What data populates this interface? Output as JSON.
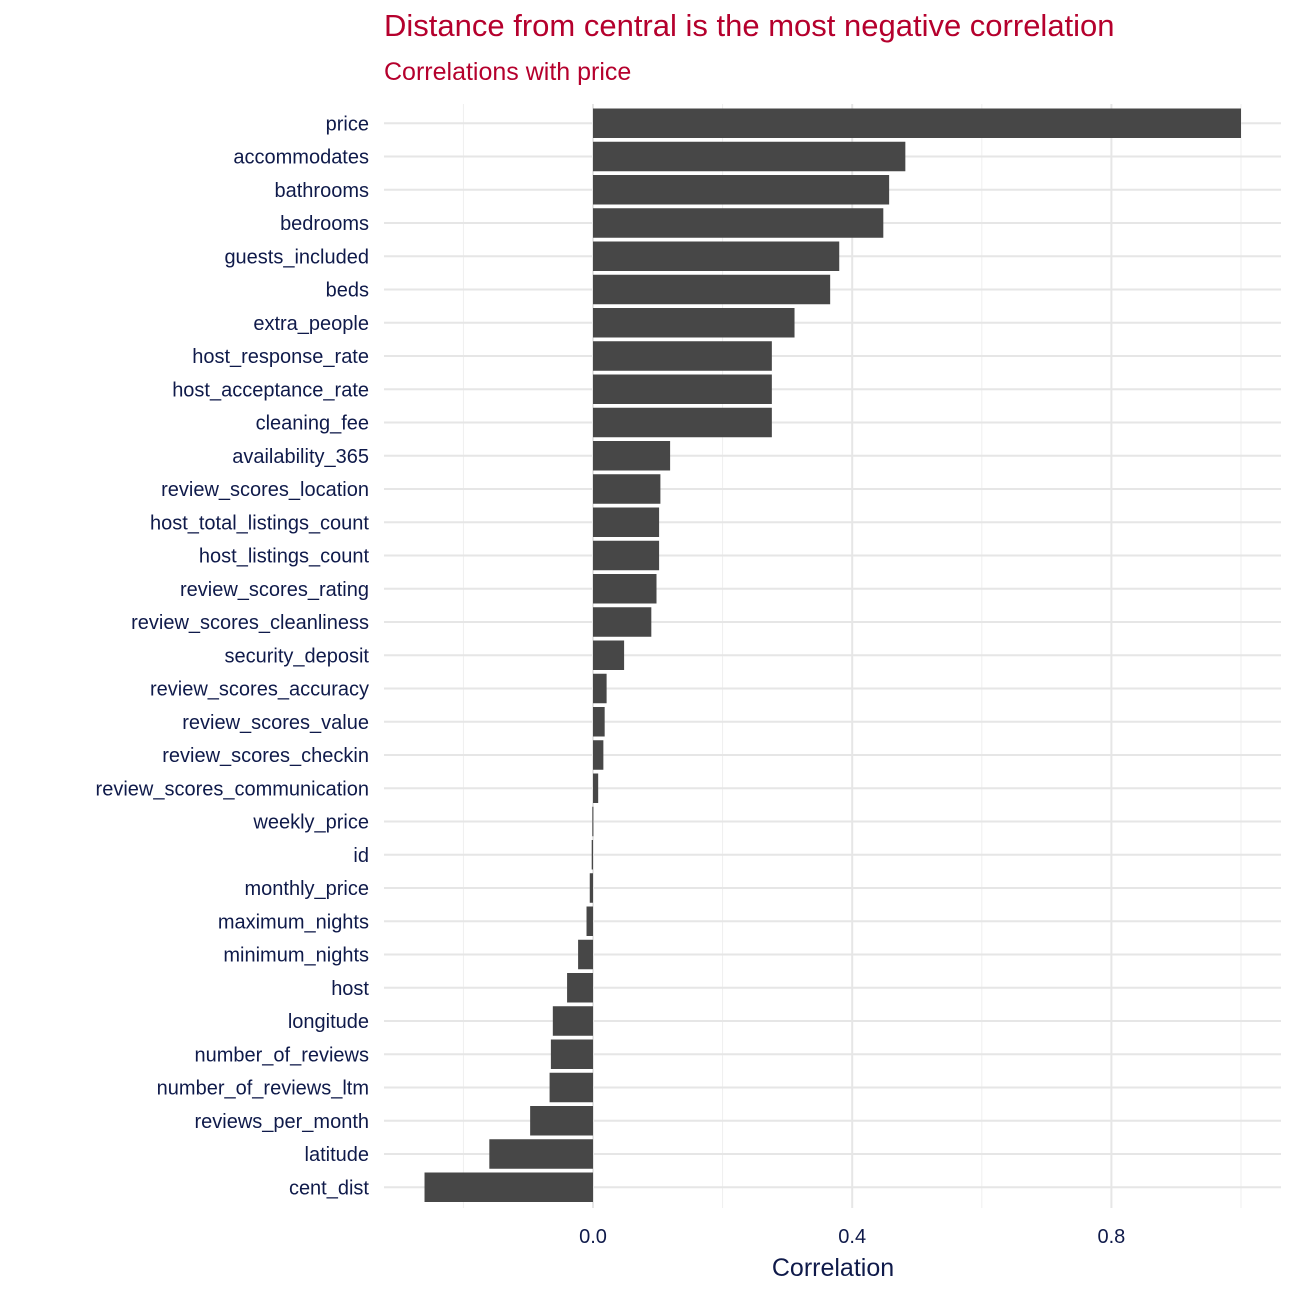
{
  "colors": {
    "title": "#b5002d",
    "bar": "#474747",
    "text": "#0f1a4a",
    "grid": "#e6e6e6"
  },
  "chart_data": {
    "type": "bar",
    "orientation": "horizontal",
    "title": "Distance from central is the most negative correlation",
    "subtitle": "Correlations with price",
    "xlabel": "Correlation",
    "ylabel": "",
    "xlim": [
      -0.32,
      1.06
    ],
    "xticks": [
      {
        "value": 0.0,
        "label": "0.0"
      },
      {
        "value": 0.4,
        "label": "0.4"
      },
      {
        "value": 0.8,
        "label": "0.8"
      }
    ],
    "grid": true,
    "legend": "none",
    "categories": [
      "price",
      "accommodates",
      "bathrooms",
      "bedrooms",
      "guests_included",
      "beds",
      "extra_people",
      "host_response_rate",
      "host_acceptance_rate",
      "cleaning_fee",
      "availability_365",
      "review_scores_location",
      "host_total_listings_count",
      "host_listings_count",
      "review_scores_rating",
      "review_scores_cleanliness",
      "security_deposit",
      "review_scores_accuracy",
      "review_scores_value",
      "review_scores_checkin",
      "review_scores_communication",
      "weekly_price",
      "id",
      "monthly_price",
      "maximum_nights",
      "minimum_nights",
      "host",
      "longitude",
      "number_of_reviews",
      "number_of_reviews_ltm",
      "reviews_per_month",
      "latitude",
      "cent_dist"
    ],
    "values": [
      1.0,
      0.482,
      0.457,
      0.448,
      0.38,
      0.366,
      0.311,
      0.276,
      0.276,
      0.276,
      0.119,
      0.104,
      0.102,
      0.102,
      0.098,
      0.09,
      0.048,
      0.021,
      0.018,
      0.016,
      0.008,
      -0.001,
      -0.002,
      -0.005,
      -0.01,
      -0.023,
      -0.04,
      -0.062,
      -0.065,
      -0.067,
      -0.097,
      -0.16,
      -0.26
    ]
  }
}
